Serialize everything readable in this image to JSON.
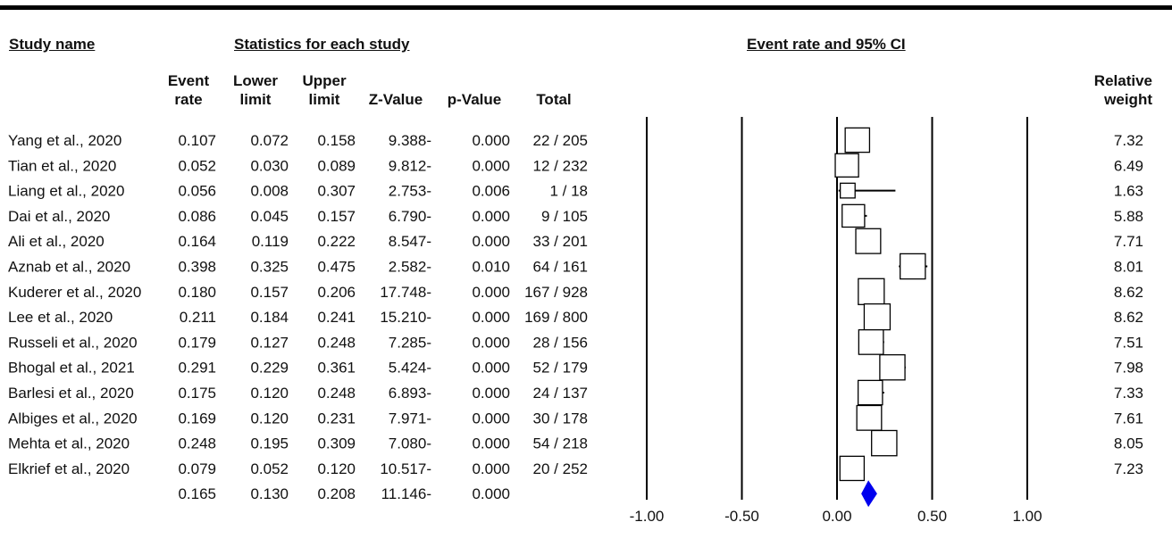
{
  "headers": {
    "study_name": "Study name",
    "stats": "Statistics for each study",
    "ci": "Event rate and 95% CI",
    "event_rate": [
      "Event",
      "rate"
    ],
    "lower_limit": [
      "Lower",
      "limit"
    ],
    "upper_limit": [
      "Upper",
      "limit"
    ],
    "z_value": "Z-Value",
    "p_value": "p-Value",
    "total": "Total",
    "relative_weight": [
      "Relative",
      "weight"
    ]
  },
  "chart_data": {
    "type": "forest",
    "x_ticks": [
      "-1.00",
      "-0.50",
      "0.00",
      "0.50",
      "1.00"
    ],
    "xlim": [
      -1.0,
      1.0
    ],
    "rows": [
      {
        "study": "Yang et al., 2020",
        "event_rate": "0.107",
        "lower": "0.072",
        "upper": "0.158",
        "z": "9.388-",
        "p": "0.000",
        "total": "22 / 205",
        "weight": "7.32"
      },
      {
        "study": "Tian et al., 2020",
        "event_rate": "0.052",
        "lower": "0.030",
        "upper": "0.089",
        "z": "9.812-",
        "p": "0.000",
        "total": "12 / 232",
        "weight": "6.49"
      },
      {
        "study": "Liang et al., 2020",
        "event_rate": "0.056",
        "lower": "0.008",
        "upper": "0.307",
        "z": "2.753-",
        "p": "0.006",
        "total": "1 / 18",
        "weight": "1.63"
      },
      {
        "study": "Dai et al., 2020",
        "event_rate": "0.086",
        "lower": "0.045",
        "upper": "0.157",
        "z": "6.790-",
        "p": "0.000",
        "total": "9 / 105",
        "weight": "5.88"
      },
      {
        "study": "Ali et al., 2020",
        "event_rate": "0.164",
        "lower": "0.119",
        "upper": "0.222",
        "z": "8.547-",
        "p": "0.000",
        "total": "33 / 201",
        "weight": "7.71"
      },
      {
        "study": "Aznab et al., 2020",
        "event_rate": "0.398",
        "lower": "0.325",
        "upper": "0.475",
        "z": "2.582-",
        "p": "0.010",
        "total": "64 / 161",
        "weight": "8.01"
      },
      {
        "study": "Kuderer et al., 2020",
        "event_rate": "0.180",
        "lower": "0.157",
        "upper": "0.206",
        "z": "17.748-",
        "p": "0.000",
        "total": "167 / 928",
        "weight": "8.62"
      },
      {
        "study": "Lee et al., 2020",
        "event_rate": "0.211",
        "lower": "0.184",
        "upper": "0.241",
        "z": "15.210-",
        "p": "0.000",
        "total": "169 / 800",
        "weight": "8.62"
      },
      {
        "study": "Russeli et al., 2020",
        "event_rate": "0.179",
        "lower": "0.127",
        "upper": "0.248",
        "z": "7.285-",
        "p": "0.000",
        "total": "28 / 156",
        "weight": "7.51"
      },
      {
        "study": "Bhogal et al., 2021",
        "event_rate": "0.291",
        "lower": "0.229",
        "upper": "0.361",
        "z": "5.424-",
        "p": "0.000",
        "total": "52 / 179",
        "weight": "7.98"
      },
      {
        "study": "Barlesi et al., 2020",
        "event_rate": "0.175",
        "lower": "0.120",
        "upper": "0.248",
        "z": "6.893-",
        "p": "0.000",
        "total": "24 / 137",
        "weight": "7.33"
      },
      {
        "study": "Albiges et al., 2020",
        "event_rate": "0.169",
        "lower": "0.120",
        "upper": "0.231",
        "z": "7.971-",
        "p": "0.000",
        "total": "30 / 178",
        "weight": "7.61"
      },
      {
        "study": "Mehta et al., 2020",
        "event_rate": "0.248",
        "lower": "0.195",
        "upper": "0.309",
        "z": "7.080-",
        "p": "0.000",
        "total": "54 / 218",
        "weight": "8.05"
      },
      {
        "study": "Elkrief et al., 2020",
        "event_rate": "0.079",
        "lower": "0.052",
        "upper": "0.120",
        "z": "10.517-",
        "p": "0.000",
        "total": "20 / 252",
        "weight": "7.23"
      }
    ],
    "summary": {
      "event_rate": "0.165",
      "lower": "0.130",
      "upper": "0.208",
      "z": "11.146-",
      "p": "0.000"
    },
    "colors": {
      "summary_diamond": "#0000ee",
      "lines": "#000000"
    }
  }
}
